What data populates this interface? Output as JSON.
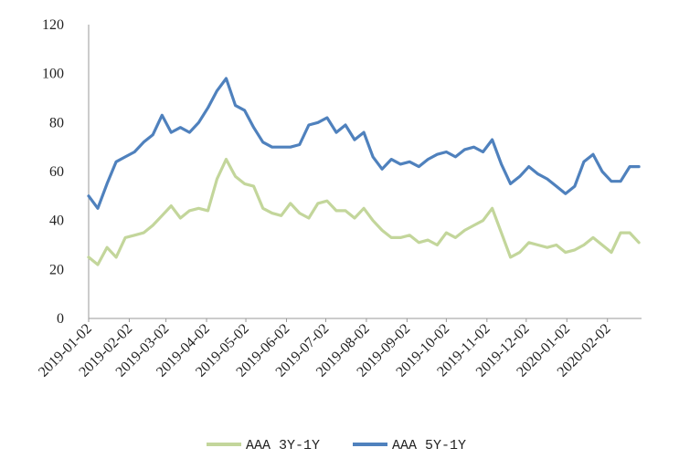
{
  "chart_data": {
    "type": "line",
    "title": "",
    "xlabel": "",
    "ylabel": "",
    "ylim": [
      0,
      120
    ],
    "yticks": [
      0,
      20,
      40,
      60,
      80,
      100,
      120
    ],
    "grid": false,
    "legend_position": "bottom",
    "x_tick_labels": [
      "2019-01-02",
      "2019-02-02",
      "2019-03-02",
      "2019-04-02",
      "2019-05-02",
      "2019-06-02",
      "2019-07-02",
      "2019-08-02",
      "2019-09-02",
      "2019-10-02",
      "2019-11-02",
      "2019-12-02",
      "2020-01-02",
      "2020-02-02"
    ],
    "x": [
      "2019-01-02",
      "2019-01-09",
      "2019-01-16",
      "2019-01-23",
      "2019-01-30",
      "2019-02-06",
      "2019-02-13",
      "2019-02-20",
      "2019-02-27",
      "2019-03-06",
      "2019-03-13",
      "2019-03-20",
      "2019-03-27",
      "2019-04-03",
      "2019-04-10",
      "2019-04-17",
      "2019-04-24",
      "2019-05-01",
      "2019-05-08",
      "2019-05-15",
      "2019-05-22",
      "2019-05-29",
      "2019-06-05",
      "2019-06-12",
      "2019-06-19",
      "2019-06-26",
      "2019-07-03",
      "2019-07-10",
      "2019-07-17",
      "2019-07-24",
      "2019-07-31",
      "2019-08-07",
      "2019-08-14",
      "2019-08-21",
      "2019-08-28",
      "2019-09-04",
      "2019-09-11",
      "2019-09-18",
      "2019-09-25",
      "2019-10-02",
      "2019-10-09",
      "2019-10-16",
      "2019-10-23",
      "2019-10-30",
      "2019-11-06",
      "2019-11-13",
      "2019-11-20",
      "2019-11-27",
      "2019-12-04",
      "2019-12-11",
      "2019-12-18",
      "2019-12-25",
      "2020-01-01",
      "2020-01-08",
      "2020-01-15",
      "2020-01-22",
      "2020-01-29",
      "2020-02-05",
      "2020-02-12",
      "2020-02-19",
      "2020-02-26"
    ],
    "series": [
      {
        "name": "AAA 3Y-1Y",
        "color": "#c3d69b",
        "values": [
          25,
          22,
          29,
          25,
          33,
          34,
          35,
          38,
          42,
          46,
          41,
          44,
          45,
          44,
          57,
          65,
          58,
          55,
          54,
          45,
          43,
          42,
          47,
          43,
          41,
          47,
          48,
          44,
          44,
          41,
          45,
          40,
          36,
          33,
          33,
          34,
          31,
          32,
          30,
          35,
          33,
          36,
          38,
          40,
          45,
          35,
          25,
          27,
          31,
          30,
          29,
          30,
          27,
          28,
          30,
          33,
          30,
          27,
          35,
          35,
          31
        ]
      },
      {
        "name": "AAA 5Y-1Y",
        "color": "#4f81bd",
        "values": [
          50,
          45,
          55,
          64,
          66,
          68,
          72,
          75,
          83,
          76,
          78,
          76,
          80,
          86,
          93,
          98,
          87,
          85,
          78,
          72,
          70,
          70,
          70,
          71,
          79,
          80,
          82,
          76,
          79,
          73,
          76,
          66,
          61,
          65,
          63,
          64,
          62,
          65,
          67,
          68,
          66,
          69,
          70,
          68,
          73,
          63,
          55,
          58,
          62,
          59,
          57,
          54,
          51,
          54,
          64,
          67,
          60,
          56,
          56,
          62,
          62
        ]
      }
    ]
  },
  "legend": {
    "items": [
      {
        "label": "AAA 3Y-1Y",
        "color": "#c3d69b"
      },
      {
        "label": "AAA 5Y-1Y",
        "color": "#4f81bd"
      }
    ]
  }
}
